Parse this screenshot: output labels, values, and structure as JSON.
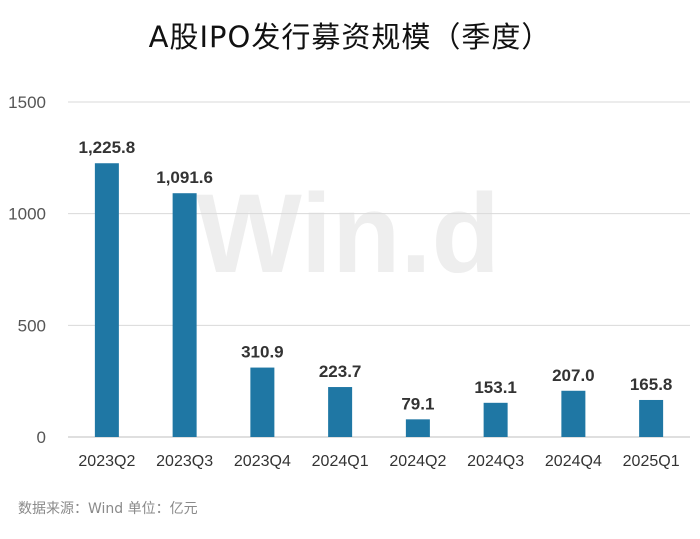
{
  "chart_data": {
    "type": "bar",
    "title": "A股IPO发行募资规模（季度）",
    "categories": [
      "2023Q2",
      "2023Q3",
      "2023Q4",
      "2024Q1",
      "2024Q2",
      "2024Q3",
      "2024Q4",
      "2025Q1"
    ],
    "values": [
      1225.8,
      1091.6,
      310.9,
      223.7,
      79.1,
      153.1,
      207.0,
      165.8
    ],
    "value_labels": [
      "1,225.8",
      "1,091.6",
      "310.9",
      "223.7",
      "79.1",
      "153.1",
      "207.0",
      "165.8"
    ],
    "ylim": [
      0,
      1500
    ],
    "yticks": [
      0,
      500,
      1000,
      1500
    ],
    "xlabel": "",
    "ylabel": "",
    "grid": true,
    "bar_color": "#1f77a4",
    "watermark": "Win.d",
    "source_note": "数据来源：Wind  单位：亿元"
  }
}
